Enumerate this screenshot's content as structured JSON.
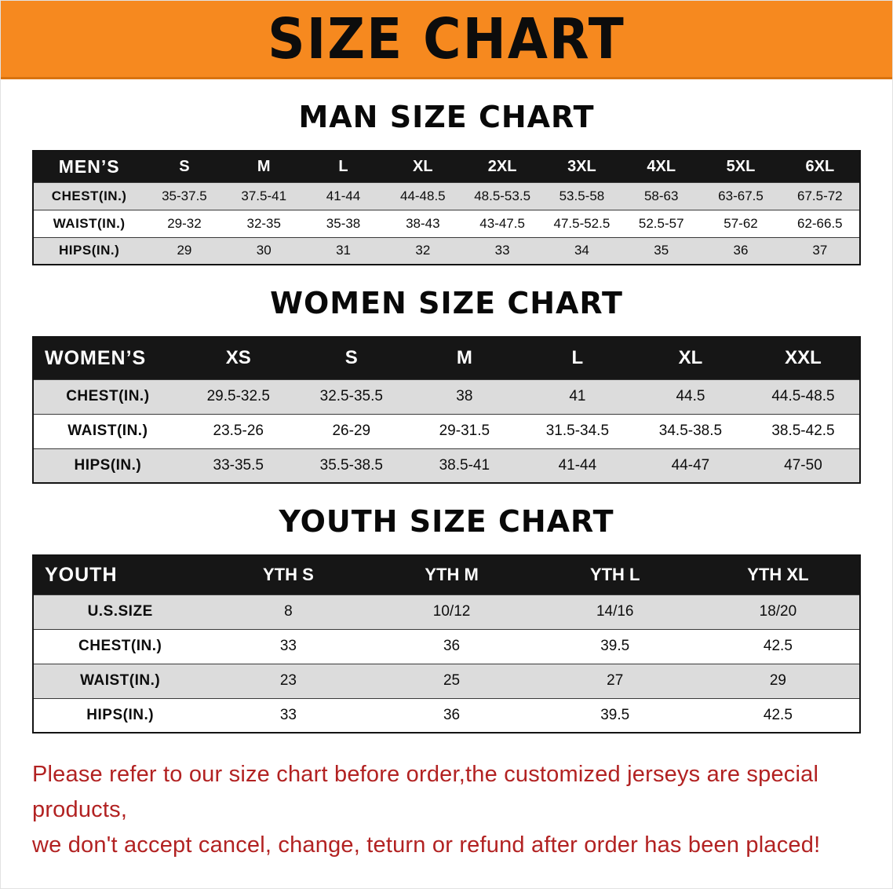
{
  "banner": {
    "title": "SIZE CHART"
  },
  "sections": [
    {
      "id": "men",
      "heading": "MAN SIZE CHART",
      "table": {
        "header": [
          "MEN’S",
          "S",
          "M",
          "L",
          "XL",
          "2XL",
          "3XL",
          "4XL",
          "5XL",
          "6XL"
        ],
        "rows": [
          [
            "CHEST(IN.)",
            "35-37.5",
            "37.5-41",
            "41-44",
            "44-48.5",
            "48.5-53.5",
            "53.5-58",
            "58-63",
            "63-67.5",
            "67.5-72"
          ],
          [
            "WAIST(IN.)",
            "29-32",
            "32-35",
            "35-38",
            "38-43",
            "43-47.5",
            "47.5-52.5",
            "52.5-57",
            "57-62",
            "62-66.5"
          ],
          [
            "HIPS(IN.)",
            "29",
            "30",
            "31",
            "32",
            "33",
            "34",
            "35",
            "36",
            "37"
          ]
        ]
      }
    },
    {
      "id": "women",
      "heading": "WOMEN SIZE CHART",
      "table": {
        "header": [
          "WOMEN’S",
          "XS",
          "S",
          "M",
          "L",
          "XL",
          "XXL"
        ],
        "rows": [
          [
            "CHEST(IN.)",
            "29.5-32.5",
            "32.5-35.5",
            "38",
            "41",
            "44.5",
            "44.5-48.5"
          ],
          [
            "WAIST(IN.)",
            "23.5-26",
            "26-29",
            "29-31.5",
            "31.5-34.5",
            "34.5-38.5",
            "38.5-42.5"
          ],
          [
            "HIPS(IN.)",
            "33-35.5",
            "35.5-38.5",
            "38.5-41",
            "41-44",
            "44-47",
            "47-50"
          ]
        ]
      }
    },
    {
      "id": "youth",
      "heading": "YOUTH SIZE CHART",
      "table": {
        "header": [
          "YOUTH",
          "YTH S",
          "YTH M",
          "YTH L",
          "YTH XL"
        ],
        "rows": [
          [
            "U.S.SIZE",
            "8",
            "10/12",
            "14/16",
            "18/20"
          ],
          [
            "CHEST(IN.)",
            "33",
            "36",
            "39.5",
            "42.5"
          ],
          [
            "WAIST(IN.)",
            "23",
            "25",
            "27",
            "29"
          ],
          [
            "HIPS(IN.)",
            "33",
            "36",
            "39.5",
            "42.5"
          ]
        ]
      }
    }
  ],
  "disclaimer": {
    "line1": "Please refer to our size chart before order,the customized jerseys are special products,",
    "line2": "we don't accept cancel, change, teturn or refund after order has been placed!"
  },
  "colors": {
    "banner_bg": "#f6891f",
    "table_header_bg": "#161616",
    "row_alt_bg": "#dcdcdc",
    "disclaimer_text": "#b22222"
  }
}
